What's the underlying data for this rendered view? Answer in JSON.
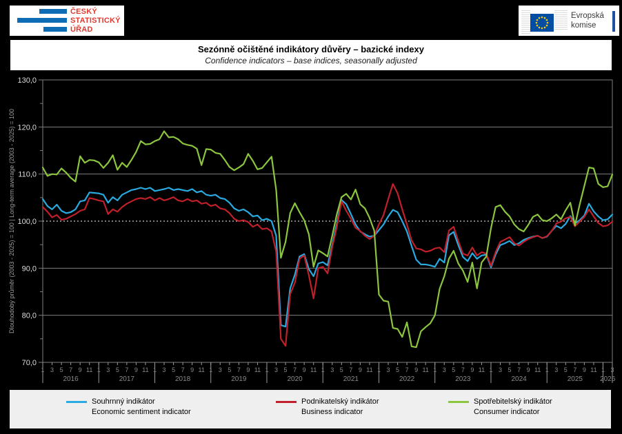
{
  "header": {
    "csu_logo": {
      "line1": "ČESKÝ",
      "line2": "STATISTICKÝ",
      "line3": "ÚŘAD"
    },
    "ec_logo": {
      "line1": "Evropská",
      "line2": "komise"
    }
  },
  "title": {
    "cs": "Sezónně očištěné indikátory důvěry – bazické indexy",
    "en": "Confidence indicators – base indices, seasonally adjusted"
  },
  "chart_data": {
    "type": "line",
    "title": "Sezónně očištěné indikátory důvěry – bazické indexy",
    "subtitle": "Confidence indicators – base indices, seasonally adjusted",
    "ylabel": "Dlouhodobý průměr (2003 - 2025) = 100 | Long-term average (2003 - 2025) = 100",
    "ylim": [
      70,
      130
    ],
    "y_ticks": [
      "130,0",
      "120,0",
      "110,0",
      "100,0",
      "90,0",
      "80,0",
      "70,0"
    ],
    "x_years": [
      "2016",
      "2017",
      "2018",
      "2019",
      "2020",
      "2021",
      "2022",
      "2023",
      "2024",
      "2025",
      "2026"
    ],
    "x_month_tick_labels": [
      1,
      3,
      5,
      7,
      9,
      11
    ],
    "x_start": "1/2016",
    "x_end": "3/2026",
    "reference_line": {
      "value": 100,
      "style": "white dotted"
    },
    "layout": {
      "background": "#000000",
      "grid_color": "#7f7f7f",
      "legend_position": "bottom",
      "grid": true
    },
    "series": [
      {
        "id": "esi",
        "name_cs": "Souhrnný indikátor",
        "name_en": "Economic sentiment indicator",
        "color": "#29ABE2",
        "values": [
          104.7,
          103.2,
          102.5,
          103.5,
          102.2,
          101.7,
          101.9,
          102.5,
          104.2,
          104.4,
          106.1,
          106.0,
          105.9,
          105.6,
          103.9,
          105.1,
          104.4,
          105.6,
          106.1,
          106.6,
          106.8,
          107.1,
          106.8,
          107.1,
          106.4,
          106.6,
          106.8,
          107.1,
          106.6,
          106.8,
          106.6,
          106.4,
          106.8,
          106.1,
          106.4,
          105.6,
          105.4,
          105.6,
          104.9,
          104.7,
          103.9,
          102.7,
          102.2,
          102.5,
          101.9,
          101.0,
          101.2,
          100.2,
          100.5,
          100.0,
          96.9,
          77.9,
          77.6,
          85.7,
          88.6,
          92.5,
          93.0,
          89.8,
          88.3,
          91.0,
          91.3,
          90.6,
          95.0,
          99.5,
          104.5,
          103.6,
          101.5,
          99.3,
          97.8,
          97.2,
          96.7,
          96.9,
          98.1,
          99.3,
          101.0,
          102.4,
          101.9,
          100.0,
          97.8,
          94.7,
          91.8,
          90.8,
          90.8,
          90.6,
          90.3,
          92.0,
          91.2,
          97.0,
          97.7,
          94.9,
          92.4,
          91.5,
          93.2,
          92.0,
          92.7,
          92.9,
          90.2,
          92.9,
          94.9,
          95.3,
          95.8,
          94.9,
          95.3,
          96.0,
          96.4,
          96.7,
          96.9,
          96.4,
          96.7,
          97.9,
          99.0,
          98.5,
          99.4,
          101.1,
          99.5,
          100.2,
          101.2,
          103.7,
          102.1,
          101.0,
          100.2,
          100.4,
          101.4
        ]
      },
      {
        "id": "business",
        "name_cs": "Podnikatelský indikátor",
        "name_en": "Business indicator",
        "color": "#C0202A",
        "values": [
          103.0,
          102.0,
          100.8,
          101.3,
          100.3,
          100.5,
          101.0,
          101.5,
          102.2,
          102.5,
          104.9,
          104.7,
          104.4,
          104.2,
          101.5,
          102.5,
          102.0,
          103.0,
          103.7,
          104.2,
          104.7,
          104.9,
          104.7,
          105.1,
          104.4,
          104.9,
          104.4,
          104.7,
          105.1,
          104.4,
          104.2,
          104.7,
          104.2,
          104.4,
          103.7,
          103.9,
          103.2,
          103.5,
          102.7,
          102.5,
          101.7,
          100.5,
          100.0,
          100.2,
          99.8,
          98.8,
          99.3,
          98.3,
          98.5,
          97.8,
          93.5,
          75.0,
          73.5,
          84.5,
          86.9,
          92.0,
          92.7,
          88.5,
          83.6,
          90.0,
          90.3,
          88.9,
          94.5,
          98.8,
          104.2,
          102.2,
          100.5,
          98.6,
          97.9,
          96.9,
          96.2,
          96.9,
          99.3,
          101.3,
          104.7,
          107.9,
          105.9,
          102.5,
          99.3,
          95.9,
          94.2,
          94.0,
          93.5,
          93.7,
          94.2,
          94.4,
          93.4,
          98.0,
          98.8,
          95.8,
          93.1,
          92.7,
          94.4,
          92.7,
          93.4,
          93.1,
          90.5,
          93.4,
          95.6,
          96.1,
          96.6,
          95.3,
          94.8,
          95.6,
          96.2,
          96.6,
          96.9,
          96.4,
          96.8,
          97.9,
          99.5,
          99.9,
          100.6,
          100.9,
          98.9,
          99.9,
          100.9,
          102.5,
          101.0,
          99.6,
          98.9,
          99.1,
          99.9
        ]
      },
      {
        "id": "consumer",
        "name_cs": "Spotřebitelský indikátor",
        "name_en": "Consumer indicator",
        "color": "#8CC63F",
        "values": [
          111.4,
          109.6,
          110.0,
          109.9,
          111.2,
          110.3,
          109.2,
          108.4,
          113.8,
          112.4,
          113.0,
          112.9,
          112.5,
          111.3,
          112.4,
          114.0,
          110.9,
          112.4,
          111.5,
          113.0,
          114.7,
          117.0,
          116.3,
          116.4,
          117.0,
          117.4,
          119.1,
          117.8,
          117.9,
          117.4,
          116.5,
          116.2,
          116.0,
          115.4,
          111.9,
          115.3,
          115.2,
          114.5,
          114.3,
          113.0,
          111.5,
          110.8,
          111.4,
          112.1,
          114.3,
          112.8,
          111.0,
          111.3,
          112.5,
          113.7,
          106.6,
          92.2,
          95.6,
          101.7,
          103.8,
          101.9,
          100.2,
          97.2,
          90.3,
          93.8,
          93.2,
          92.5,
          96.9,
          101.5,
          105.1,
          105.8,
          104.6,
          106.7,
          103.6,
          102.7,
          100.7,
          98.0,
          84.4,
          83.1,
          82.9,
          77.3,
          77.1,
          75.4,
          78.5,
          73.4,
          73.2,
          76.6,
          77.5,
          78.3,
          80.0,
          85.6,
          88.3,
          92.0,
          93.7,
          91.0,
          89.5,
          87.1,
          91.2,
          85.7,
          91.2,
          92.5,
          98.5,
          103.0,
          103.4,
          102.0,
          101.0,
          99.3,
          98.3,
          97.8,
          99.2,
          100.9,
          101.4,
          100.2,
          100.0,
          100.6,
          101.4,
          100.4,
          102.3,
          103.9,
          99.1,
          103.5,
          107.5,
          111.4,
          111.2,
          107.9,
          107.2,
          107.4,
          109.9
        ]
      }
    ]
  }
}
